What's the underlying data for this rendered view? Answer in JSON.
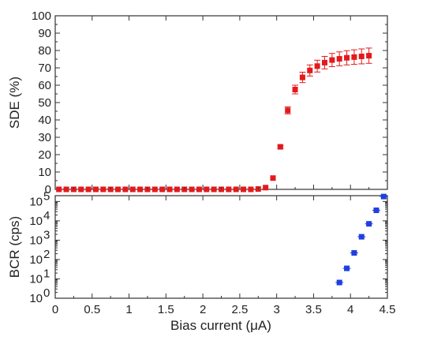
{
  "chart_data": [
    {
      "type": "scatter",
      "ylabel": "SDE (%)",
      "xlim": [
        0,
        4.5
      ],
      "ylim": [
        0,
        100
      ],
      "yticks": [
        "0",
        "10",
        "20",
        "30",
        "40",
        "50",
        "60",
        "70",
        "80",
        "90",
        "100"
      ],
      "grid": false,
      "color": "#e31a1c",
      "series": [
        {
          "x": [
            0.05,
            0.15,
            0.25,
            0.35,
            0.45,
            0.55,
            0.65,
            0.75,
            0.85,
            0.95,
            1.05,
            1.15,
            1.25,
            1.35,
            1.45,
            1.55,
            1.65,
            1.75,
            1.85,
            1.95,
            2.05,
            2.15,
            2.25,
            2.35,
            2.45,
            2.55,
            2.65,
            2.75,
            2.85,
            2.95,
            3.05,
            3.15,
            3.25,
            3.35,
            3.45,
            3.55,
            3.65,
            3.75,
            3.85,
            3.95,
            4.05,
            4.15,
            4.25
          ],
          "y": [
            0,
            0,
            0,
            0,
            0,
            0,
            0,
            0,
            0,
            0,
            0,
            0,
            0,
            0,
            0,
            0,
            0,
            0,
            0,
            0,
            0,
            0,
            0,
            0,
            0,
            0,
            0,
            0.2,
            1,
            6.5,
            24.5,
            45.5,
            57.5,
            64.5,
            68.5,
            71,
            73,
            74.5,
            75.2,
            75.8,
            76.2,
            76.6,
            77
          ],
          "error": [
            0,
            0,
            0,
            0,
            0,
            0,
            0,
            0,
            0,
            0,
            0,
            0,
            0,
            0,
            0,
            0,
            0,
            0,
            0,
            0,
            0,
            0,
            0,
            0,
            0,
            0,
            0,
            0,
            0,
            0,
            0.8,
            2,
            2.5,
            3,
            3.2,
            3.4,
            3.6,
            3.8,
            4,
            4.1,
            4.2,
            4.3,
            4.4
          ]
        }
      ]
    },
    {
      "type": "scatter",
      "ylabel": "BCR (cps)",
      "xlabel": "Bias current (μA)",
      "xlim": [
        0,
        4.5
      ],
      "xticks": [
        "0",
        "0.5",
        "1",
        "1.5",
        "2",
        "2.5",
        "3",
        "3.5",
        "4",
        "4.5"
      ],
      "ylim": [
        0,
        5.3
      ],
      "yscale": "log",
      "yticks": [
        "10",
        "10",
        "10",
        "10",
        "10",
        "10"
      ],
      "ytick_exponents": [
        "0",
        "1",
        "2",
        "3",
        "4",
        "5"
      ],
      "grid": false,
      "color": "#1f3fe0",
      "series": [
        {
          "x": [
            3.85,
            3.95,
            4.05,
            4.15,
            4.25,
            4.35,
            4.45
          ],
          "y": [
            6.5,
            35,
            220,
            1500,
            7000,
            35000,
            180000
          ]
        }
      ]
    }
  ]
}
